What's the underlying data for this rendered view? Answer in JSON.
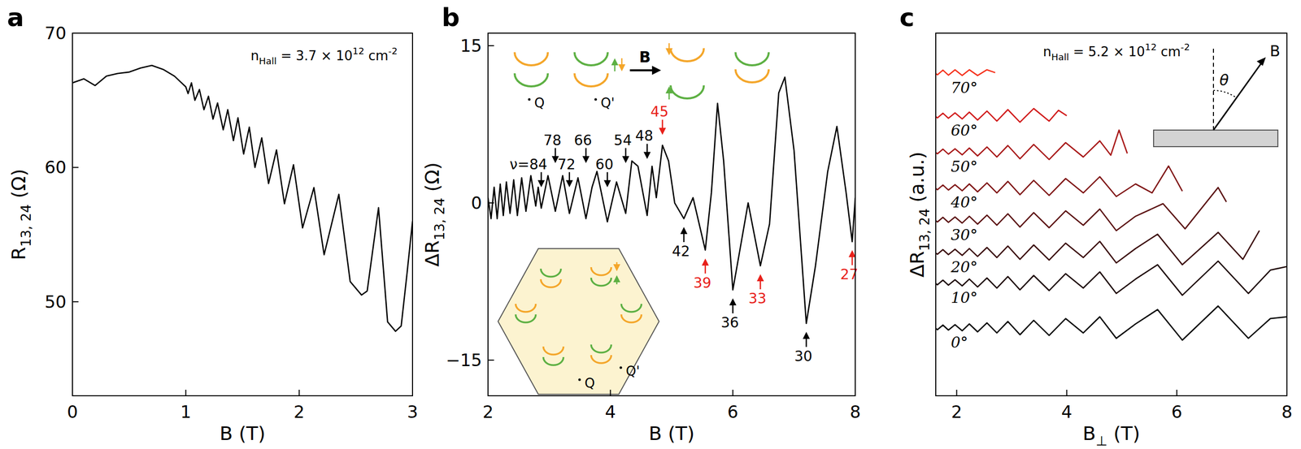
{
  "chart_data": [
    {
      "panel": "a",
      "type": "line",
      "grid": false,
      "xlabel": [
        {
          "text": "B (T)"
        }
      ],
      "ylabel": [
        {
          "text": "R"
        },
        {
          "text": "13, 24",
          "sub": true
        },
        {
          "text": " (Ω)"
        }
      ],
      "xlim": [
        0,
        3
      ],
      "ylim": [
        43,
        70
      ],
      "xticks": [
        0,
        1,
        2,
        3
      ],
      "yticks": [
        50,
        60,
        70
      ],
      "annotations": [
        {
          "text": [
            {
              "text": "n"
            },
            {
              "text": "Hall",
              "sub": true
            },
            {
              "text": " = 3.7 × 10"
            },
            {
              "text": "12",
              "sup": true
            },
            {
              "text": " cm"
            },
            {
              "text": "-2",
              "sup": true
            }
          ]
        }
      ],
      "series": [
        {
          "color": "#000000",
          "x": [
            0,
            0.1,
            0.2,
            0.3,
            0.4,
            0.5,
            0.6,
            0.7,
            0.8,
            0.9,
            1.0,
            1.02,
            1.05,
            1.08,
            1.12,
            1.16,
            1.2,
            1.24,
            1.28,
            1.33,
            1.37,
            1.42,
            1.46,
            1.51,
            1.56,
            1.61,
            1.67,
            1.73,
            1.8,
            1.87,
            1.95,
            2.03,
            2.13,
            2.22,
            2.35,
            2.45,
            2.55,
            2.6,
            2.7,
            2.78,
            2.85,
            2.9,
            2.95,
            3.0
          ],
          "values": [
            66.3,
            66.6,
            66.1,
            66.8,
            67.0,
            67.1,
            67.4,
            67.6,
            67.3,
            66.8,
            66.0,
            65.5,
            66.3,
            65.0,
            65.8,
            64.3,
            65.3,
            63.6,
            64.8,
            62.8,
            64.3,
            62.0,
            63.7,
            61.0,
            63.0,
            60.0,
            62.2,
            58.8,
            61.3,
            57.3,
            60.2,
            55.5,
            58.5,
            53.5,
            58.0,
            51.5,
            50.5,
            50.8,
            57.0,
            48.5,
            47.8,
            48.2,
            52.0,
            56.0
          ]
        }
      ]
    },
    {
      "panel": "b",
      "type": "line",
      "grid": false,
      "xlabel": [
        {
          "text": "B (T)"
        }
      ],
      "ylabel": [
        {
          "text": "ΔR"
        },
        {
          "text": "13, 24",
          "sub": true
        },
        {
          "text": " (Ω)"
        }
      ],
      "xlim": [
        2,
        8
      ],
      "ylim": [
        -18.4,
        16.2
      ],
      "xticks": [
        2,
        4,
        6,
        8
      ],
      "yticks": [
        {
          "value": -15,
          "label": "−15"
        },
        0,
        15
      ],
      "inset_labels": [
        "Q",
        "Q'",
        "B",
        "Q'",
        "Q"
      ],
      "annotations": [
        {
          "text": "ν=84",
          "x": 2.87,
          "y": 1.5,
          "arrow": "down",
          "color": "#000000"
        },
        {
          "text": "78",
          "x": 3.1,
          "y": 3.8,
          "arrow": "down",
          "color": "#000000"
        },
        {
          "text": "72",
          "x": 3.33,
          "y": 1.5,
          "arrow": "down",
          "color": "#000000"
        },
        {
          "text": "66",
          "x": 3.6,
          "y": 3.8,
          "arrow": "down",
          "color": "#000000"
        },
        {
          "text": "60",
          "x": 3.95,
          "y": 1.5,
          "arrow": "down",
          "color": "#000000"
        },
        {
          "text": "54",
          "x": 4.25,
          "y": 3.8,
          "arrow": "down",
          "color": "#000000"
        },
        {
          "text": "48",
          "x": 4.6,
          "y": 4.2,
          "arrow": "down",
          "color": "#000000"
        },
        {
          "text": "45",
          "x": 4.85,
          "y": 6.5,
          "arrow": "down",
          "color": "#e8201a"
        },
        {
          "text": "42",
          "x": 5.2,
          "y": -2.3,
          "arrow": "up",
          "color": "#000000"
        },
        {
          "text": "39",
          "x": 5.55,
          "y": -5.3,
          "arrow": "up",
          "color": "#e8201a"
        },
        {
          "text": "36",
          "x": 6.0,
          "y": -9.1,
          "arrow": "up",
          "color": "#000000"
        },
        {
          "text": "33",
          "x": 6.45,
          "y": -6.8,
          "arrow": "up",
          "color": "#e8201a"
        },
        {
          "text": "30",
          "x": 7.2,
          "y": -12.3,
          "arrow": "up",
          "color": "#000000"
        },
        {
          "text": "27",
          "x": 7.95,
          "y": -4.5,
          "arrow": "up",
          "color": "#e8201a"
        }
      ],
      "series": [
        {
          "color": "#000000",
          "x": [
            2.0,
            2.05,
            2.1,
            2.15,
            2.2,
            2.25,
            2.3,
            2.36,
            2.42,
            2.48,
            2.55,
            2.62,
            2.7,
            2.78,
            2.82,
            2.87,
            2.98,
            3.1,
            3.22,
            3.33,
            3.47,
            3.6,
            3.7,
            3.78,
            3.95,
            4.1,
            4.25,
            4.35,
            4.45,
            4.6,
            4.68,
            4.75,
            4.85,
            4.95,
            5.05,
            5.2,
            5.35,
            5.55,
            5.65,
            5.75,
            5.85,
            6.0,
            6.1,
            6.25,
            6.35,
            6.45,
            6.6,
            6.75,
            6.85,
            7.0,
            7.2,
            7.35,
            7.55,
            7.7,
            7.85,
            7.95,
            8.0
          ],
          "values": [
            0.5,
            -1.5,
            1.5,
            -1.5,
            1.8,
            -1.2,
            2.0,
            -1.0,
            2.2,
            -1.2,
            2.4,
            -0.8,
            2.6,
            -0.3,
            1.5,
            -0.5,
            2.6,
            -0.8,
            2.6,
            -1.0,
            2.4,
            -1.5,
            1.5,
            3.0,
            -1.8,
            2.0,
            -1.0,
            4.0,
            3.5,
            -1.2,
            3.5,
            0.5,
            5.5,
            4.0,
            0.0,
            -1.5,
            0.5,
            -4.5,
            1.0,
            9.5,
            4.0,
            -8.3,
            -5.0,
            0.0,
            -3.0,
            -6.0,
            -2.0,
            10.5,
            12.0,
            5.0,
            -11.5,
            -6.0,
            3.0,
            7.3,
            1.0,
            -3.7,
            0.5
          ]
        }
      ]
    },
    {
      "panel": "c",
      "type": "line",
      "grid": false,
      "tick_labels": "x",
      "xlabel": [
        {
          "text": "B"
        },
        {
          "text": "⊥",
          "sub": true
        },
        {
          "text": " (T)"
        }
      ],
      "ylabel": [
        {
          "text": "ΔR"
        },
        {
          "text": "13, 24",
          "sub": true
        },
        {
          "text": " (a.u.)"
        }
      ],
      "xlim": [
        1.62,
        8
      ],
      "ylim": [
        -1.9,
        8.2
      ],
      "xticks": [
        2,
        4,
        6,
        8
      ],
      "inset_labels": [
        "θ",
        "B"
      ],
      "annotations": [
        {
          "text": [
            {
              "text": "n"
            },
            {
              "text": "Hall",
              "sub": true
            },
            {
              "text": " = 5.2 × 10"
            },
            {
              "text": "12",
              "sup": true
            },
            {
              "text": " cm"
            },
            {
              "text": "-2",
              "sup": true
            }
          ]
        }
      ],
      "series": [
        {
          "name": "0°",
          "color": "#000000",
          "x": [
            1.5,
            1.55,
            1.65,
            1.75,
            1.85,
            1.97,
            2.1,
            2.23,
            2.38,
            2.55,
            2.73,
            2.93,
            3.15,
            3.4,
            3.68,
            3.98,
            4.3,
            4.6,
            4.9,
            5.25,
            5.65,
            6.1,
            6.75,
            7.3,
            7.7,
            8.0
          ],
          "values": [
            0,
            0.06,
            -0.06,
            0.07,
            -0.07,
            0.08,
            -0.09,
            0.1,
            -0.12,
            0.13,
            -0.15,
            0.17,
            -0.2,
            0.2,
            -0.22,
            0.25,
            -0.15,
            0.3,
            -0.3,
            0.1,
            0.5,
            -0.35,
            0.6,
            -0.3,
            0.25,
            0.3
          ]
        },
        {
          "name": "10°",
          "color": "#1c0505",
          "x": [
            1.5,
            1.55,
            1.65,
            1.75,
            1.85,
            1.97,
            2.1,
            2.23,
            2.38,
            2.55,
            2.73,
            2.93,
            3.15,
            3.4,
            3.68,
            3.98,
            4.3,
            4.6,
            4.9,
            5.25,
            5.65,
            6.1,
            6.75,
            7.3,
            7.7,
            8.0
          ],
          "values": [
            1.25,
            1.31,
            1.19,
            1.32,
            1.18,
            1.33,
            1.16,
            1.35,
            1.13,
            1.38,
            1.1,
            1.42,
            1.05,
            1.45,
            1.03,
            1.5,
            1.1,
            1.55,
            0.95,
            1.35,
            1.75,
            0.9,
            1.85,
            0.95,
            1.6,
            1.7
          ]
        },
        {
          "name": "20°",
          "color": "#3a0a0a",
          "x": [
            1.5,
            1.55,
            1.65,
            1.75,
            1.85,
            1.97,
            2.1,
            2.23,
            2.38,
            2.55,
            2.73,
            2.93,
            3.15,
            3.4,
            3.68,
            3.98,
            4.3,
            4.6,
            4.9,
            5.25,
            5.65,
            6.1,
            6.75,
            7.2,
            7.5
          ],
          "values": [
            2.1,
            2.16,
            2.04,
            2.17,
            2.03,
            2.18,
            2.01,
            2.2,
            1.98,
            2.23,
            1.95,
            2.27,
            1.9,
            2.3,
            1.88,
            2.35,
            1.95,
            2.4,
            1.8,
            2.2,
            2.6,
            1.75,
            2.65,
            1.9,
            2.7
          ]
        },
        {
          "name": "30°",
          "color": "#5a0f0f",
          "x": [
            1.5,
            1.55,
            1.65,
            1.75,
            1.85,
            1.97,
            2.1,
            2.23,
            2.38,
            2.55,
            2.73,
            2.93,
            3.15,
            3.4,
            3.68,
            3.98,
            4.3,
            4.6,
            4.9,
            5.25,
            5.75,
            6.15,
            6.75,
            6.9
          ],
          "values": [
            3.0,
            3.06,
            2.94,
            3.07,
            2.93,
            3.08,
            2.91,
            3.1,
            2.88,
            3.13,
            2.85,
            3.17,
            2.8,
            3.2,
            2.78,
            3.25,
            2.85,
            3.3,
            2.7,
            3.1,
            3.45,
            2.75,
            3.9,
            3.5
          ]
        },
        {
          "name": "40°",
          "color": "#7f1414",
          "x": [
            1.5,
            1.55,
            1.65,
            1.75,
            1.85,
            1.97,
            2.1,
            2.23,
            2.38,
            2.55,
            2.73,
            2.93,
            3.15,
            3.4,
            3.68,
            3.98,
            4.3,
            4.6,
            4.9,
            5.25,
            5.55,
            5.85,
            6.1
          ],
          "values": [
            3.9,
            3.96,
            3.84,
            3.97,
            3.83,
            3.98,
            3.81,
            4.0,
            3.78,
            4.03,
            3.75,
            4.07,
            3.7,
            4.1,
            3.68,
            4.15,
            3.75,
            4.2,
            3.65,
            4.0,
            3.75,
            4.5,
            3.8
          ]
        },
        {
          "name": "50°",
          "color": "#a81818",
          "x": [
            1.5,
            1.55,
            1.65,
            1.75,
            1.85,
            1.97,
            2.1,
            2.23,
            2.38,
            2.55,
            2.73,
            2.93,
            3.15,
            3.4,
            3.68,
            3.98,
            4.3,
            4.6,
            4.8,
            4.95,
            5.1
          ],
          "values": [
            4.9,
            4.96,
            4.84,
            4.97,
            4.83,
            4.98,
            4.81,
            5.0,
            4.78,
            5.03,
            4.75,
            5.07,
            4.7,
            5.1,
            4.68,
            5.15,
            4.75,
            5.2,
            4.8,
            5.5,
            4.85
          ]
        },
        {
          "name": "60°",
          "color": "#d11c1c",
          "x": [
            1.5,
            1.55,
            1.65,
            1.75,
            1.85,
            1.97,
            2.1,
            2.23,
            2.38,
            2.55,
            2.73,
            2.93,
            3.15,
            3.4,
            3.68,
            3.85,
            4.0
          ],
          "values": [
            5.9,
            5.96,
            5.84,
            5.97,
            5.83,
            5.98,
            5.81,
            6.0,
            5.78,
            6.03,
            5.75,
            6.07,
            5.72,
            6.1,
            5.75,
            6.05,
            5.9
          ]
        },
        {
          "name": "70°",
          "color": "#f5301b",
          "x": [
            1.5,
            1.55,
            1.65,
            1.75,
            1.85,
            1.97,
            2.1,
            2.23,
            2.38,
            2.55,
            2.7
          ],
          "values": [
            7.1,
            7.16,
            7.04,
            7.17,
            7.03,
            7.18,
            7.02,
            7.18,
            7.02,
            7.18,
            7.1
          ]
        }
      ]
    }
  ]
}
